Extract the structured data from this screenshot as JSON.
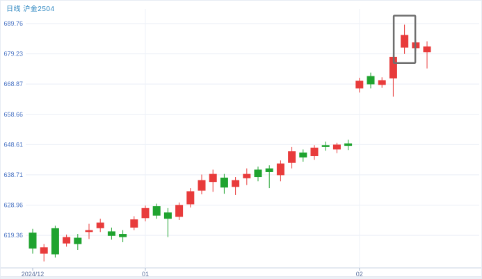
{
  "header": {
    "title": "日线 沪金2504"
  },
  "colors": {
    "up": "#e83b3b",
    "down": "#1fa32f",
    "title": "#2a85c0",
    "y_label": "#4a74c4",
    "x_label": "#5d72a0",
    "grid": "#e9eef6",
    "vgrid": "#eef2f8",
    "axis": "#c8d3e3",
    "tick": "#a9b8cf",
    "highlight_box": "#6e6e6e",
    "background": "#ffffff"
  },
  "chart_data": {
    "type": "candlestick",
    "title": "日线 沪金2504",
    "instrument": "沪金2504",
    "period": "日线",
    "scale": "log",
    "ylim": [
      609.4,
      694.9
    ],
    "y_ticks": [
      689.76,
      679.23,
      668.87,
      658.66,
      648.61,
      638.71,
      628.96,
      619.36
    ],
    "x_ticks": [
      {
        "label": "2024/12",
        "index": 0
      },
      {
        "label": "01",
        "index": 10
      },
      {
        "label": "02",
        "index": 29
      }
    ],
    "highlight": {
      "candle_index": 33
    },
    "candles": [
      {
        "o": 620.2,
        "h": 621.4,
        "l": 613.6,
        "c": 615.2
      },
      {
        "o": 613.6,
        "h": 616.6,
        "l": 611.2,
        "c": 615.6
      },
      {
        "o": 621.6,
        "h": 622.4,
        "l": 612.4,
        "c": 613.4
      },
      {
        "o": 616.8,
        "h": 619.6,
        "l": 615.8,
        "c": 618.8
      },
      {
        "o": 618.6,
        "h": 619.8,
        "l": 614.8,
        "c": 616.6
      },
      {
        "o": 620.4,
        "h": 623.0,
        "l": 618.2,
        "c": 621.0
      },
      {
        "o": 621.6,
        "h": 624.6,
        "l": 620.4,
        "c": 623.4
      },
      {
        "o": 620.6,
        "h": 621.8,
        "l": 618.0,
        "c": 619.2
      },
      {
        "o": 619.8,
        "h": 621.0,
        "l": 617.2,
        "c": 618.8
      },
      {
        "o": 621.8,
        "h": 625.4,
        "l": 621.0,
        "c": 624.4
      },
      {
        "o": 624.8,
        "h": 628.8,
        "l": 623.8,
        "c": 628.0
      },
      {
        "o": 628.6,
        "h": 629.4,
        "l": 624.6,
        "c": 625.6
      },
      {
        "o": 626.6,
        "h": 628.0,
        "l": 618.8,
        "c": 624.6
      },
      {
        "o": 625.2,
        "h": 629.8,
        "l": 624.2,
        "c": 629.0
      },
      {
        "o": 629.2,
        "h": 634.4,
        "l": 628.2,
        "c": 633.4
      },
      {
        "o": 633.6,
        "h": 638.8,
        "l": 632.4,
        "c": 637.0
      },
      {
        "o": 636.4,
        "h": 640.4,
        "l": 633.2,
        "c": 639.0
      },
      {
        "o": 637.8,
        "h": 639.0,
        "l": 632.6,
        "c": 634.6
      },
      {
        "o": 634.8,
        "h": 638.0,
        "l": 632.2,
        "c": 637.0
      },
      {
        "o": 637.6,
        "h": 640.8,
        "l": 635.4,
        "c": 639.0
      },
      {
        "o": 640.4,
        "h": 641.4,
        "l": 636.6,
        "c": 638.0
      },
      {
        "o": 640.8,
        "h": 641.8,
        "l": 634.4,
        "c": 639.6
      },
      {
        "o": 638.6,
        "h": 643.4,
        "l": 636.6,
        "c": 642.4
      },
      {
        "o": 642.6,
        "h": 647.8,
        "l": 640.8,
        "c": 646.4
      },
      {
        "o": 646.0,
        "h": 647.0,
        "l": 643.0,
        "c": 644.4
      },
      {
        "o": 644.8,
        "h": 648.4,
        "l": 643.6,
        "c": 647.6
      },
      {
        "o": 648.4,
        "h": 649.6,
        "l": 646.6,
        "c": 647.8
      },
      {
        "o": 647.0,
        "h": 649.2,
        "l": 645.8,
        "c": 648.6
      },
      {
        "o": 649.0,
        "h": 650.2,
        "l": 646.8,
        "c": 648.2
      },
      {
        "o": 667.4,
        "h": 671.0,
        "l": 666.0,
        "c": 670.0
      },
      {
        "o": 671.6,
        "h": 672.8,
        "l": 667.4,
        "c": 668.8
      },
      {
        "o": 668.6,
        "h": 671.2,
        "l": 667.6,
        "c": 670.2
      },
      {
        "o": 670.8,
        "h": 679.0,
        "l": 664.6,
        "c": 678.2
      },
      {
        "o": 681.4,
        "h": 689.4,
        "l": 679.2,
        "c": 685.8
      },
      {
        "o": 681.2,
        "h": 684.0,
        "l": 680.2,
        "c": 683.2
      },
      {
        "o": 679.8,
        "h": 683.6,
        "l": 674.2,
        "c": 681.8
      }
    ]
  }
}
